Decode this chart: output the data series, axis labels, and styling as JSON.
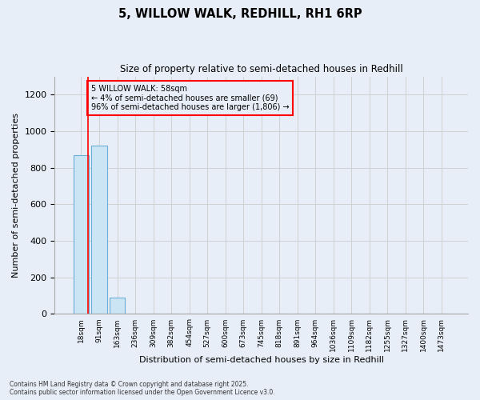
{
  "title1": "5, WILLOW WALK, REDHILL, RH1 6RP",
  "title2": "Size of property relative to semi-detached houses in Redhill",
  "xlabel": "Distribution of semi-detached houses by size in Redhill",
  "ylabel": "Number of semi-detached properties",
  "footer": "Contains HM Land Registry data © Crown copyright and database right 2025.\nContains public sector information licensed under the Open Government Licence v3.0.",
  "bin_labels": [
    "18sqm",
    "91sqm",
    "163sqm",
    "236sqm",
    "309sqm",
    "382sqm",
    "454sqm",
    "527sqm",
    "600sqm",
    "673sqm",
    "745sqm",
    "818sqm",
    "891sqm",
    "964sqm",
    "1036sqm",
    "1109sqm",
    "1182sqm",
    "1255sqm",
    "1327sqm",
    "1400sqm",
    "1473sqm"
  ],
  "values": [
    870,
    920,
    90,
    0,
    0,
    0,
    0,
    0,
    0,
    0,
    0,
    0,
    0,
    0,
    0,
    0,
    0,
    0,
    0,
    0,
    0
  ],
  "bar_color": "#cce5f5",
  "bar_edge_color": "#6aaed6",
  "ylim": [
    0,
    1300
  ],
  "yticks": [
    0,
    200,
    400,
    600,
    800,
    1000,
    1200
  ],
  "annotation_title": "5 WILLOW WALK: 58sqm",
  "annotation_line1": "← 4% of semi-detached houses are smaller (69)",
  "annotation_line2": "96% of semi-detached houses are larger (1,806) →",
  "background_color": "#e8eef8"
}
